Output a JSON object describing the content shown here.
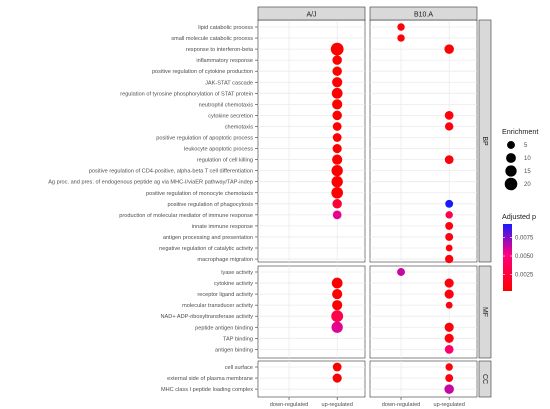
{
  "chart_data": {
    "type": "scatter",
    "title": "",
    "facets": [
      "A/J",
      "B10.A"
    ],
    "x_categories": [
      "down-regulated",
      "up-regulated"
    ],
    "groups": [
      {
        "name": "BP",
        "terms": [
          "lipid catabolic process",
          "small molecule catabolic process",
          "response to interferon-beta",
          "inflammatory response",
          "positive regulation of cytokine production",
          "JAK-STAT cascade",
          "regulation of tyrosine phosphorylation of STAT protein",
          "neutrophil chemotaxis",
          "cytokine secretion",
          "chemotaxis",
          "positive regulation of apoptotic process",
          "leukocyte apoptotic process",
          "regulation of cell killing",
          "positive regulation of CD4-positive, alpha-beta T cell differentiation",
          "Ag proc. and pres. of endogenous peptide ag via MHC-I/viaER pathway/TAP-indep",
          "positive regulation of monocyte chemotaxis",
          "positive regulation of phagocytosis",
          "production of molecular mediator of immune response",
          "innate immune response",
          "antigen processing and presentation",
          "negative regulation of catalytic activity",
          "macrophage migration"
        ]
      },
      {
        "name": "MF",
        "terms": [
          "lyase activity",
          "cytokine activity",
          "receptor ligand activity",
          "molecular transducer activity",
          "NAD+ ADP-ribosyltransferase activity",
          "peptide antigen binding",
          "TAP binding",
          "antigen binding"
        ]
      },
      {
        "name": "CC",
        "terms": [
          "cell surface",
          "external side of plasma membrane",
          "MHC class I peptide loading complex"
        ]
      }
    ],
    "points": [
      {
        "facet": "B10.A",
        "term": "lipid catabolic process",
        "x": "down-regulated",
        "enrichment": 4,
        "p": 0.0006
      },
      {
        "facet": "B10.A",
        "term": "small molecule catabolic process",
        "x": "down-regulated",
        "enrichment": 4,
        "p": 0.0006
      },
      {
        "facet": "A/J",
        "term": "response to interferon-beta",
        "x": "up-regulated",
        "enrichment": 21,
        "p": 0.0003
      },
      {
        "facet": "B10.A",
        "term": "response to interferon-beta",
        "x": "up-regulated",
        "enrichment": 9,
        "p": 0.0005
      },
      {
        "facet": "A/J",
        "term": "inflammatory response",
        "x": "up-regulated",
        "enrichment": 9,
        "p": 0.0003
      },
      {
        "facet": "A/J",
        "term": "positive regulation of cytokine production",
        "x": "up-regulated",
        "enrichment": 9,
        "p": 0.0003
      },
      {
        "facet": "A/J",
        "term": "JAK-STAT cascade",
        "x": "up-regulated",
        "enrichment": 11,
        "p": 0.0003
      },
      {
        "facet": "A/J",
        "term": "regulation of tyrosine phosphorylation of STAT protein",
        "x": "up-regulated",
        "enrichment": 13,
        "p": 0.0003
      },
      {
        "facet": "A/J",
        "term": "neutrophil chemotaxis",
        "x": "up-regulated",
        "enrichment": 11,
        "p": 0.0003
      },
      {
        "facet": "A/J",
        "term": "cytokine secretion",
        "x": "up-regulated",
        "enrichment": 9,
        "p": 0.0003
      },
      {
        "facet": "B10.A",
        "term": "cytokine secretion",
        "x": "up-regulated",
        "enrichment": 7,
        "p": 0.0008
      },
      {
        "facet": "A/J",
        "term": "chemotaxis",
        "x": "up-regulated",
        "enrichment": 7,
        "p": 0.0003
      },
      {
        "facet": "B10.A",
        "term": "chemotaxis",
        "x": "up-regulated",
        "enrichment": 6,
        "p": 0.0008
      },
      {
        "facet": "A/J",
        "term": "positive regulation of apoptotic process",
        "x": "up-regulated",
        "enrichment": 7,
        "p": 0.0003
      },
      {
        "facet": "A/J",
        "term": "leukocyte apoptotic process",
        "x": "up-regulated",
        "enrichment": 8,
        "p": 0.0003
      },
      {
        "facet": "A/J",
        "term": "regulation of cell killing",
        "x": "up-regulated",
        "enrichment": 11,
        "p": 0.0003
      },
      {
        "facet": "B10.A",
        "term": "regulation of cell killing",
        "x": "up-regulated",
        "enrichment": 7,
        "p": 0.0008
      },
      {
        "facet": "A/J",
        "term": "positive regulation of CD4-positive, alpha-beta T cell differentiation",
        "x": "up-regulated",
        "enrichment": 15,
        "p": 0.0003
      },
      {
        "facet": "A/J",
        "term": "Ag proc. and pres. of endogenous peptide ag via MHC-I/viaER pathway/TAP-indep",
        "x": "up-regulated",
        "enrichment": 15,
        "p": 0.0003
      },
      {
        "facet": "A/J",
        "term": "positive regulation of monocyte chemotaxis",
        "x": "up-regulated",
        "enrichment": 16,
        "p": 0.0003
      },
      {
        "facet": "A/J",
        "term": "positive regulation of phagocytosis",
        "x": "up-regulated",
        "enrichment": 9,
        "p": 0.0022
      },
      {
        "facet": "B10.A",
        "term": "positive regulation of phagocytosis",
        "x": "up-regulated",
        "enrichment": 5,
        "p": 0.0093
      },
      {
        "facet": "A/J",
        "term": "production of molecular mediator of immune response",
        "x": "up-regulated",
        "enrichment": 7,
        "p": 0.0057
      },
      {
        "facet": "B10.A",
        "term": "production of molecular mediator of immune response",
        "x": "up-regulated",
        "enrichment": 4,
        "p": 0.0034
      },
      {
        "facet": "B10.A",
        "term": "innate immune response",
        "x": "up-regulated",
        "enrichment": 5,
        "p": 0.0008
      },
      {
        "facet": "B10.A",
        "term": "antigen processing and presentation",
        "x": "up-regulated",
        "enrichment": 5,
        "p": 0.0009
      },
      {
        "facet": "B10.A",
        "term": "negative regulation of catalytic activity",
        "x": "up-regulated",
        "enrichment": 3,
        "p": 0.0008
      },
      {
        "facet": "B10.A",
        "term": "macrophage migration",
        "x": "up-regulated",
        "enrichment": 6,
        "p": 0.0008
      },
      {
        "facet": "B10.A",
        "term": "lyase activity",
        "x": "down-regulated",
        "enrichment": 5,
        "p": 0.0062
      },
      {
        "facet": "A/J",
        "term": "cytokine activity",
        "x": "up-regulated",
        "enrichment": 13,
        "p": 0.0003
      },
      {
        "facet": "B10.A",
        "term": "cytokine activity",
        "x": "up-regulated",
        "enrichment": 8,
        "p": 0.0008
      },
      {
        "facet": "A/J",
        "term": "receptor ligand activity",
        "x": "up-regulated",
        "enrichment": 11,
        "p": 0.0003
      },
      {
        "facet": "B10.A",
        "term": "receptor ligand activity",
        "x": "up-regulated",
        "enrichment": 8,
        "p": 0.0008
      },
      {
        "facet": "A/J",
        "term": "molecular transducer activity",
        "x": "up-regulated",
        "enrichment": 11,
        "p": 0.0003
      },
      {
        "facet": "B10.A",
        "term": "molecular transducer activity",
        "x": "up-regulated",
        "enrichment": 3,
        "p": 0.0008
      },
      {
        "facet": "A/J",
        "term": "NAD+ ADP-ribosyltransferase activity",
        "x": "up-regulated",
        "enrichment": 17,
        "p": 0.0032
      },
      {
        "facet": "A/J",
        "term": "peptide antigen binding",
        "x": "up-regulated",
        "enrichment": 15,
        "p": 0.0058
      },
      {
        "facet": "B10.A",
        "term": "peptide antigen binding",
        "x": "up-regulated",
        "enrichment": 8,
        "p": 0.0008
      },
      {
        "facet": "B10.A",
        "term": "TAP binding",
        "x": "up-regulated",
        "enrichment": 8,
        "p": 0.0008
      },
      {
        "facet": "B10.A",
        "term": "antigen binding",
        "x": "up-regulated",
        "enrichment": 7,
        "p": 0.0044
      },
      {
        "facet": "A/J",
        "term": "cell surface",
        "x": "up-regulated",
        "enrichment": 7,
        "p": 0.0003
      },
      {
        "facet": "B10.A",
        "term": "cell surface",
        "x": "up-regulated",
        "enrichment": 4,
        "p": 0.0008
      },
      {
        "facet": "A/J",
        "term": "external side of plasma membrane",
        "x": "up-regulated",
        "enrichment": 8,
        "p": 0.0003
      },
      {
        "facet": "B10.A",
        "term": "external side of plasma membrane",
        "x": "up-regulated",
        "enrichment": 5,
        "p": 0.0008
      },
      {
        "facet": "B10.A",
        "term": "MHC class I peptide loading complex",
        "x": "up-regulated",
        "enrichment": 9,
        "p": 0.0063
      }
    ],
    "size_legend": {
      "title": "Enrichment",
      "values": [
        5,
        10,
        15,
        20
      ]
    },
    "color_legend": {
      "title": "Adjusted p",
      "ticks": [
        0.0075,
        0.005,
        0.0025
      ],
      "tick_labels": [
        "0.0075",
        "0.0050",
        "0.0025"
      ],
      "range": [
        0.0003,
        0.0093
      ],
      "low_color": "#ff0000",
      "mid_color": "#ff0080",
      "high_color": "#1a1aff"
    },
    "colors": {
      "panel_bg": "#ffffff",
      "strip_bg": "#d9d9d9",
      "grid": "#ebebeb",
      "border": "#333333"
    },
    "grid": true
  }
}
